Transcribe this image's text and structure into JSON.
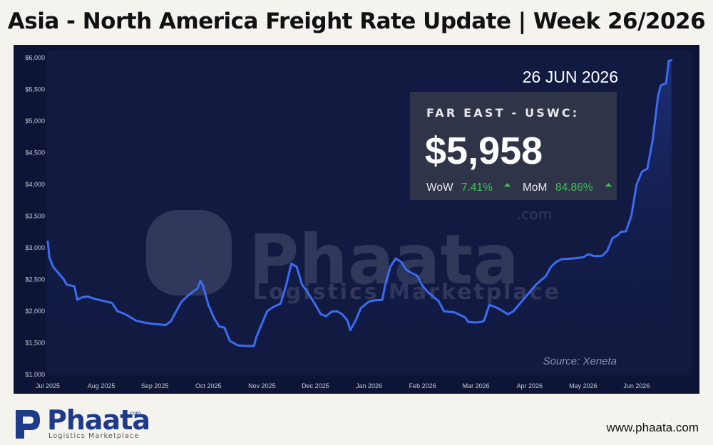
{
  "page_title": "Asia - North America Freight Rate Update | Week 26/2026",
  "colors": {
    "background": "#f5f3ee",
    "chart_bg": "#0d1436",
    "line": "#3b6cf0",
    "card_bg": "#2f3448",
    "positive": "#3bc45a"
  },
  "overlay": {
    "date": "26 JUN 2026",
    "route_label": "FAR EAST - USWC:",
    "price": "$5,958",
    "wow_label": "WoW",
    "wow_value": "7.41%",
    "mom_label": "MoM",
    "mom_value": "84.86%",
    "trend_icon": "triangle-up-icon",
    "source": "Source: Xeneta"
  },
  "watermark": {
    "word": "Phaata",
    "com": ".com",
    "tagline": "Logistics  Marketplace"
  },
  "footer": {
    "logo_word": "Phaata",
    "logo_com": ".com",
    "logo_tagline": "Logistics  Marketplace",
    "website": "www.phaata.com"
  },
  "chart_data": {
    "type": "line",
    "title": "",
    "xlabel": "",
    "ylabel": "",
    "ylim": [
      1000,
      6000
    ],
    "xlim": [
      0,
      12
    ],
    "yticks": [
      "$1,000",
      "$1,500",
      "$2,000",
      "$2,500",
      "$3,000",
      "$3,500",
      "$4,000",
      "$4,500",
      "$5,000",
      "$5,500",
      "$6,000"
    ],
    "xticks": [
      "Jul 2025",
      "Aug 2025",
      "Sep 2025",
      "Oct 2025",
      "Nov 2025",
      "Dec 2025",
      "Jan 2026",
      "Feb 2026",
      "Mar 2026",
      "Apr 2026",
      "May 2026",
      "Jun 2026"
    ],
    "grid": false,
    "series": [
      {
        "name": "",
        "points": [
          [
            0.0,
            3100
          ],
          [
            0.03,
            2850
          ],
          [
            0.1,
            2700
          ],
          [
            0.2,
            2600
          ],
          [
            0.3,
            2500
          ],
          [
            0.35,
            2420
          ],
          [
            0.5,
            2390
          ],
          [
            0.55,
            2180
          ],
          [
            0.65,
            2220
          ],
          [
            0.75,
            2230
          ],
          [
            0.85,
            2200
          ],
          [
            0.95,
            2180
          ],
          [
            1.05,
            2160
          ],
          [
            1.2,
            2130
          ],
          [
            1.3,
            2000
          ],
          [
            1.45,
            1950
          ],
          [
            1.55,
            1900
          ],
          [
            1.65,
            1850
          ],
          [
            1.8,
            1820
          ],
          [
            1.95,
            1800
          ],
          [
            2.1,
            1790
          ],
          [
            2.2,
            1780
          ],
          [
            2.3,
            1840
          ],
          [
            2.4,
            2000
          ],
          [
            2.5,
            2150
          ],
          [
            2.6,
            2230
          ],
          [
            2.7,
            2300
          ],
          [
            2.8,
            2360
          ],
          [
            2.85,
            2480
          ],
          [
            2.9,
            2400
          ],
          [
            3.0,
            2100
          ],
          [
            3.1,
            1900
          ],
          [
            3.2,
            1760
          ],
          [
            3.3,
            1740
          ],
          [
            3.4,
            1530
          ],
          [
            3.55,
            1460
          ],
          [
            3.7,
            1450
          ],
          [
            3.85,
            1450
          ],
          [
            3.9,
            1600
          ],
          [
            4.0,
            1800
          ],
          [
            4.1,
            2000
          ],
          [
            4.2,
            2060
          ],
          [
            4.35,
            2120
          ],
          [
            4.45,
            2400
          ],
          [
            4.55,
            2750
          ],
          [
            4.65,
            2700
          ],
          [
            4.75,
            2420
          ],
          [
            4.85,
            2300
          ],
          [
            5.0,
            2100
          ],
          [
            5.1,
            1950
          ],
          [
            5.2,
            1920
          ],
          [
            5.3,
            1990
          ],
          [
            5.4,
            2000
          ],
          [
            5.5,
            1950
          ],
          [
            5.6,
            1850
          ],
          [
            5.65,
            1700
          ],
          [
            5.75,
            1850
          ],
          [
            5.85,
            2050
          ],
          [
            6.0,
            2150
          ],
          [
            6.1,
            2170
          ],
          [
            6.25,
            2180
          ],
          [
            6.3,
            2400
          ],
          [
            6.4,
            2700
          ],
          [
            6.5,
            2830
          ],
          [
            6.6,
            2780
          ],
          [
            6.7,
            2650
          ],
          [
            6.8,
            2600
          ],
          [
            6.9,
            2560
          ],
          [
            7.0,
            2400
          ],
          [
            7.1,
            2300
          ],
          [
            7.3,
            2160
          ],
          [
            7.4,
            2000
          ],
          [
            7.6,
            1980
          ],
          [
            7.7,
            1940
          ],
          [
            7.8,
            1900
          ],
          [
            7.85,
            1830
          ],
          [
            8.0,
            1820
          ],
          [
            8.1,
            1830
          ],
          [
            8.15,
            1850
          ],
          [
            8.25,
            2100
          ],
          [
            8.4,
            2050
          ],
          [
            8.5,
            2000
          ],
          [
            8.6,
            1950
          ],
          [
            8.7,
            2000
          ],
          [
            8.8,
            2100
          ],
          [
            8.9,
            2200
          ],
          [
            9.0,
            2300
          ],
          [
            9.1,
            2400
          ],
          [
            9.2,
            2480
          ],
          [
            9.3,
            2550
          ],
          [
            9.4,
            2700
          ],
          [
            9.5,
            2780
          ],
          [
            9.6,
            2820
          ],
          [
            9.8,
            2830
          ],
          [
            10.0,
            2850
          ],
          [
            10.1,
            2900
          ],
          [
            10.2,
            2870
          ],
          [
            10.35,
            2870
          ],
          [
            10.45,
            2950
          ],
          [
            10.55,
            3150
          ],
          [
            10.65,
            3200
          ],
          [
            10.7,
            3250
          ],
          [
            10.8,
            3260
          ],
          [
            10.9,
            3500
          ],
          [
            11.0,
            4000
          ],
          [
            11.1,
            4200
          ],
          [
            11.2,
            4250
          ],
          [
            11.3,
            4700
          ],
          [
            11.4,
            5400
          ],
          [
            11.45,
            5560
          ],
          [
            11.55,
            5600
          ],
          [
            11.6,
            5950
          ],
          [
            11.65,
            5958
          ]
        ]
      }
    ]
  }
}
